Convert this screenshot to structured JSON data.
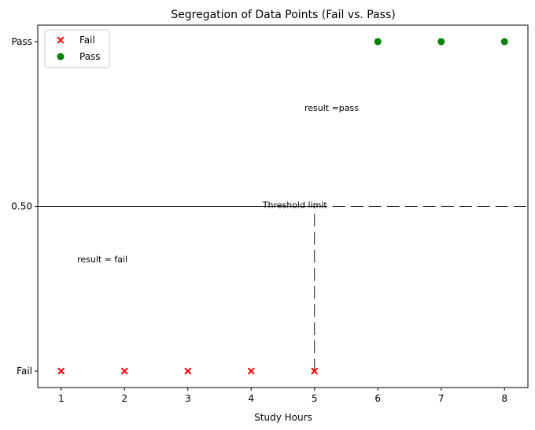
{
  "chart_data": {
    "type": "scatter",
    "title": "Segregation of Data Points (Fail vs. Pass)",
    "xlabel": "Study Hours",
    "ylabel": "",
    "xlim": [
      0.63,
      8.37
    ],
    "ylim": [
      -0.05,
      1.05
    ],
    "x_ticks": [
      1,
      2,
      3,
      4,
      5,
      6,
      7,
      8
    ],
    "y_ticks": [
      {
        "value": 0,
        "label": "Fail"
      },
      {
        "value": 0.5,
        "label": "0.50"
      },
      {
        "value": 1,
        "label": "Pass"
      }
    ],
    "series": [
      {
        "name": "Fail",
        "marker": "x",
        "color": "#ff0000",
        "x": [
          1,
          2,
          3,
          4,
          5
        ],
        "y": [
          0,
          0,
          0,
          0,
          0
        ]
      },
      {
        "name": "Pass",
        "marker": "o",
        "color": "#008000",
        "x": [
          6,
          7,
          8
        ],
        "y": [
          1,
          1,
          1
        ]
      }
    ],
    "lines": [
      {
        "orientation": "horizontal",
        "y": 0.5,
        "x_from": 0.63,
        "x_to": 5,
        "style": "solid"
      },
      {
        "orientation": "horizontal",
        "y": 0.5,
        "x_from": 5,
        "x_to": 8.37,
        "style": "dashed"
      },
      {
        "orientation": "vertical",
        "x": 5,
        "y_from": 0,
        "y_to": 0.5,
        "style": "dashed"
      }
    ],
    "annotations": [
      {
        "text": "result =pass",
        "x": 5.27,
        "y": 0.8
      },
      {
        "text": "Threshold limit",
        "x": 4.69,
        "y": 0.505
      },
      {
        "text": "result = fail",
        "x": 1.65,
        "y": 0.34
      }
    ],
    "legend": {
      "position": "upper-left"
    },
    "grid": false
  }
}
